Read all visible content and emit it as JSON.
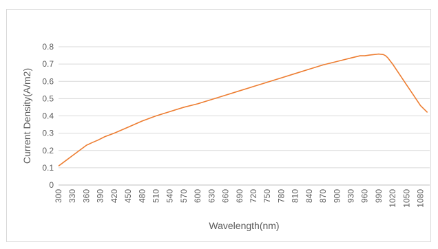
{
  "chart_data": {
    "type": "line",
    "title": "",
    "xlabel": "Wavelength(nm)",
    "ylabel": "Current Density(A/m2)",
    "xlim": [
      300,
      1100
    ],
    "ylim": [
      0,
      0.8
    ],
    "x_ticks": [
      "300",
      "330",
      "360",
      "390",
      "420",
      "450",
      "480",
      "510",
      "540",
      "570",
      "600",
      "630",
      "660",
      "690",
      "720",
      "750",
      "780",
      "810",
      "840",
      "870",
      "900",
      "930",
      "960",
      "990",
      "1020",
      "1050",
      "1080"
    ],
    "y_ticks": [
      "0",
      "0.1",
      "0.2",
      "0.3",
      "0.4",
      "0.5",
      "0.6",
      "0.7",
      "0.8"
    ],
    "grid": "horizontal",
    "legend": "none",
    "series": [
      {
        "color": "#ED7D31",
        "x": [
          300,
          315,
          330,
          345,
          360,
          372,
          385,
          400,
          420,
          450,
          480,
          510,
          540,
          570,
          600,
          630,
          660,
          690,
          720,
          750,
          780,
          810,
          840,
          870,
          900,
          930,
          950,
          960,
          970,
          980,
          990,
          1000,
          1005,
          1010,
          1020,
          1035,
          1050,
          1065,
          1080,
          1095
        ],
        "y": [
          0.11,
          0.14,
          0.17,
          0.2,
          0.23,
          0.245,
          0.26,
          0.28,
          0.3,
          0.335,
          0.37,
          0.4,
          0.425,
          0.45,
          0.47,
          0.495,
          0.52,
          0.545,
          0.57,
          0.595,
          0.62,
          0.645,
          0.67,
          0.695,
          0.715,
          0.735,
          0.748,
          0.748,
          0.752,
          0.755,
          0.758,
          0.755,
          0.748,
          0.735,
          0.7,
          0.64,
          0.58,
          0.52,
          0.46,
          0.42
        ]
      }
    ]
  }
}
